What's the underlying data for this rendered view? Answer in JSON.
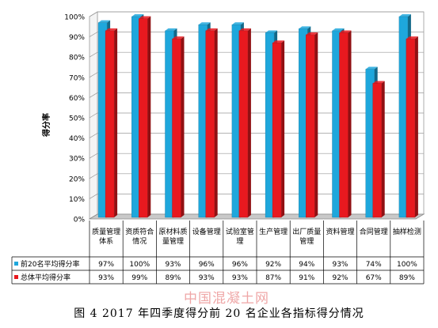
{
  "chart_data": {
    "type": "bar",
    "ylabel": "得分率",
    "ylim": [
      0,
      100
    ],
    "yticks": [
      "0%",
      "10%",
      "20%",
      "30%",
      "40%",
      "50%",
      "60%",
      "70%",
      "80%",
      "90%",
      "100%"
    ],
    "grid": true,
    "categories": [
      "质量管理体系",
      "资质符合情况",
      "原材料质量管理",
      "设备管理",
      "试验室管理",
      "生产管理",
      "出厂质量管理",
      "资料管理",
      "合同管理",
      "抽样检测"
    ],
    "series": [
      {
        "name": "前20名平均得分率",
        "color": "#1ea7dc",
        "values": [
          97,
          100,
          93,
          96,
          96,
          92,
          94,
          93,
          74,
          100
        ],
        "labels": [
          "97%",
          "100%",
          "93%",
          "96%",
          "96%",
          "92%",
          "94%",
          "93%",
          "74%",
          "100%"
        ]
      },
      {
        "name": "总体平均得分率",
        "color": "#e8191f",
        "values": [
          93,
          99,
          89,
          93,
          93,
          87,
          91,
          92,
          67,
          89
        ],
        "labels": [
          "93%",
          "99%",
          "89%",
          "93%",
          "93%",
          "87%",
          "91%",
          "92%",
          "67%",
          "89%"
        ]
      }
    ]
  },
  "caption": "图 4  2017 年四季度得分前 20 名企业各指标得分情况",
  "watermark": "中国混凝土网"
}
